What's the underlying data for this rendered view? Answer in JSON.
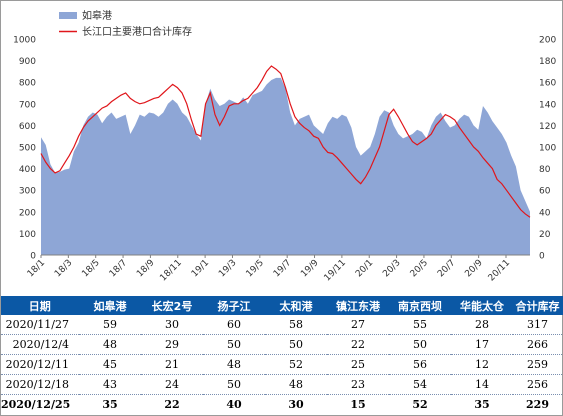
{
  "chart_data": {
    "type": "area",
    "legend_position": "top-left",
    "grid": false,
    "series": [
      {
        "name": "如皋港",
        "kind": "area",
        "axis": "left",
        "color": "#8ea6d6",
        "values": [
          545,
          510,
          420,
          380,
          385,
          395,
          400,
          480,
          520,
          600,
          640,
          660,
          650,
          610,
          640,
          660,
          630,
          640,
          650,
          560,
          600,
          650,
          640,
          660,
          655,
          640,
          660,
          700,
          720,
          700,
          660,
          640,
          600,
          560,
          530,
          700,
          770,
          720,
          690,
          700,
          720,
          710,
          700,
          730,
          700,
          740,
          750,
          760,
          790,
          810,
          820,
          820,
          770,
          660,
          600,
          630,
          640,
          650,
          600,
          580,
          560,
          610,
          640,
          630,
          650,
          640,
          590,
          500,
          460,
          480,
          500,
          560,
          640,
          670,
          660,
          600,
          560,
          540,
          550,
          560,
          580,
          570,
          540,
          600,
          640,
          660,
          620,
          590,
          600,
          630,
          650,
          640,
          600,
          580,
          690,
          660,
          620,
          590,
          560,
          520,
          460,
          410,
          300,
          250,
          200
        ]
      },
      {
        "name": "长江口主要港口合计库存",
        "kind": "line",
        "axis": "right",
        "color": "#e0161b",
        "values": [
          94,
          86,
          80,
          76,
          78,
          85,
          92,
          100,
          110,
          118,
          124,
          128,
          132,
          136,
          138,
          142,
          145,
          148,
          150,
          145,
          142,
          140,
          141,
          143,
          145,
          146,
          150,
          154,
          158,
          155,
          150,
          140,
          125,
          112,
          110,
          140,
          150,
          130,
          120,
          128,
          138,
          140,
          140,
          143,
          145,
          150,
          155,
          162,
          170,
          175,
          172,
          168,
          155,
          140,
          128,
          122,
          118,
          115,
          110,
          108,
          100,
          95,
          94,
          90,
          85,
          80,
          75,
          70,
          66,
          72,
          80,
          90,
          100,
          115,
          130,
          135,
          128,
          120,
          112,
          105,
          102,
          105,
          108,
          112,
          120,
          125,
          130,
          128,
          125,
          118,
          112,
          106,
          100,
          96,
          90,
          85,
          80,
          70,
          66,
          60,
          54,
          48,
          42,
          38,
          35
        ]
      }
    ],
    "x_tick_labels": [
      "18/1",
      "18/3",
      "18/5",
      "18/7",
      "18/9",
      "18/11",
      "19/1",
      "19/3",
      "19/5",
      "19/7",
      "19/9",
      "19/11",
      "20/1",
      "20/3",
      "20/5",
      "20/7",
      "20/9",
      "20/11"
    ],
    "y_left": {
      "min": 0,
      "max": 1000,
      "step": 100
    },
    "y_right": {
      "min": 0,
      "max": 200,
      "step": 20
    }
  },
  "table": {
    "headers": [
      "日期",
      "如皋港",
      "长宏2号",
      "扬子江",
      "太和港",
      "镇江东港",
      "南京西坝",
      "华能太仓",
      "合计库存"
    ],
    "rows": [
      [
        "2020/11/27",
        "59",
        "30",
        "60",
        "58",
        "27",
        "55",
        "28",
        "317"
      ],
      [
        "2020/12/4",
        "48",
        "29",
        "50",
        "50",
        "22",
        "50",
        "17",
        "266"
      ],
      [
        "2020/12/11",
        "45",
        "21",
        "48",
        "52",
        "25",
        "56",
        "12",
        "259"
      ],
      [
        "2020/12/18",
        "43",
        "24",
        "50",
        "48",
        "23",
        "54",
        "14",
        "256"
      ],
      [
        "2020/12/25",
        "35",
        "22",
        "40",
        "30",
        "15",
        "52",
        "35",
        "229"
      ]
    ],
    "bold_row": 4
  }
}
